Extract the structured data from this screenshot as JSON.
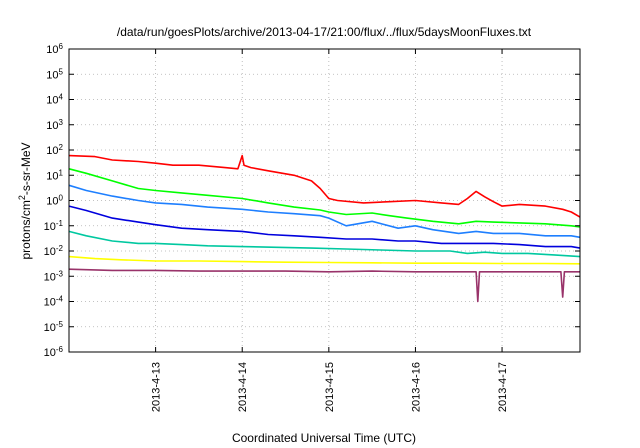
{
  "chart_data": {
    "type": "line",
    "title": "/data/run/goesPlots/archive/2013-04-17/21:00/flux/../flux/5daysMoonFluxes.txt",
    "xlabel": "Coordinated Universal Time (UTC)",
    "ylabel_prefix": "protons/cm",
    "ylabel_sup": "2",
    "ylabel_suffix": "-s-sr-MeV",
    "yscale": "log",
    "ylim": [
      1e-06,
      1000000.0
    ],
    "xlim": [
      0.0,
      5.9
    ],
    "grid": true,
    "legend": "none",
    "x_ticks": [
      {
        "x": 1,
        "label": "2013-4-13"
      },
      {
        "x": 2,
        "label": "2013-4-14"
      },
      {
        "x": 3,
        "label": "2013-4-15"
      },
      {
        "x": 4,
        "label": "2013-4-16"
      },
      {
        "x": 5,
        "label": "2013-4-17"
      }
    ],
    "y_ticks": [
      {
        "exp": -6,
        "base": "10",
        "sup": "-6"
      },
      {
        "exp": -5,
        "base": "10",
        "sup": "-5"
      },
      {
        "exp": -4,
        "base": "10",
        "sup": "-4"
      },
      {
        "exp": -3,
        "base": "10",
        "sup": "-3"
      },
      {
        "exp": -2,
        "base": "10",
        "sup": "-2"
      },
      {
        "exp": -1,
        "base": "10",
        "sup": "-1"
      },
      {
        "exp": 0,
        "base": "10",
        "sup": "0"
      },
      {
        "exp": 1,
        "base": "10",
        "sup": "1"
      },
      {
        "exp": 2,
        "base": "10",
        "sup": "2"
      },
      {
        "exp": 3,
        "base": "10",
        "sup": "3"
      },
      {
        "exp": 4,
        "base": "10",
        "sup": "4"
      },
      {
        "exp": 5,
        "base": "10",
        "sup": "5"
      },
      {
        "exp": 6,
        "base": "10",
        "sup": "6"
      }
    ],
    "series": [
      {
        "color": "#ff0000",
        "x": [
          0,
          0.3,
          0.5,
          0.8,
          1,
          1.2,
          1.5,
          1.8,
          1.95,
          2.0,
          2.02,
          2.1,
          2.3,
          2.6,
          2.8,
          2.9,
          3.0,
          3.1,
          3.4,
          3.7,
          4.0,
          4.3,
          4.5,
          4.6,
          4.7,
          4.8,
          4.9,
          5.0,
          5.2,
          5.5,
          5.7,
          5.8,
          5.9
        ],
        "y": [
          60,
          55,
          40,
          35,
          30,
          25,
          25,
          20,
          18,
          60,
          25,
          20,
          15,
          10,
          6,
          3,
          1.2,
          1.0,
          0.8,
          0.9,
          1.0,
          0.8,
          0.7,
          1.2,
          2.3,
          1.4,
          0.9,
          0.6,
          0.7,
          0.6,
          0.45,
          0.35,
          0.22
        ]
      },
      {
        "color": "#00ff00",
        "x": [
          0,
          0.2,
          0.5,
          0.8,
          1,
          1.3,
          1.6,
          2,
          2.3,
          2.6,
          2.9,
          3.0,
          3.2,
          3.5,
          3.7,
          3.9,
          4.2,
          4.5,
          4.7,
          4.9,
          5.2,
          5.5,
          5.8,
          5.9
        ],
        "y": [
          18,
          12,
          6,
          3,
          2.5,
          2.0,
          1.6,
          1.2,
          0.8,
          0.55,
          0.42,
          0.35,
          0.28,
          0.32,
          0.25,
          0.2,
          0.15,
          0.12,
          0.15,
          0.14,
          0.13,
          0.12,
          0.1,
          0.09
        ]
      },
      {
        "color": "#1e7fff",
        "x": [
          0,
          0.2,
          0.5,
          0.8,
          1,
          1.3,
          1.6,
          2,
          2.3,
          2.6,
          2.9,
          3.0,
          3.2,
          3.5,
          3.8,
          4.0,
          4.2,
          4.5,
          4.7,
          4.9,
          5.2,
          5.5,
          5.8,
          5.9
        ],
        "y": [
          4,
          2.5,
          1.5,
          1.0,
          0.8,
          0.7,
          0.55,
          0.45,
          0.35,
          0.3,
          0.25,
          0.2,
          0.1,
          0.15,
          0.08,
          0.1,
          0.07,
          0.05,
          0.06,
          0.05,
          0.05,
          0.04,
          0.04,
          0.035
        ]
      },
      {
        "color": "#0000dd",
        "x": [
          0,
          0.2,
          0.5,
          0.8,
          1,
          1.3,
          1.6,
          2,
          2.3,
          2.6,
          2.9,
          3.2,
          3.5,
          3.8,
          4.0,
          4.3,
          4.6,
          4.9,
          5.2,
          5.5,
          5.8,
          5.9
        ],
        "y": [
          0.6,
          0.4,
          0.2,
          0.14,
          0.11,
          0.08,
          0.07,
          0.06,
          0.045,
          0.04,
          0.035,
          0.03,
          0.03,
          0.025,
          0.025,
          0.02,
          0.02,
          0.02,
          0.018,
          0.015,
          0.015,
          0.013
        ]
      },
      {
        "color": "#00c8a0",
        "x": [
          0,
          0.2,
          0.5,
          0.8,
          1,
          1.3,
          1.6,
          2,
          2.4,
          2.8,
          3.2,
          3.6,
          4.0,
          4.4,
          4.6,
          4.8,
          5.0,
          5.3,
          5.6,
          5.9
        ],
        "y": [
          0.06,
          0.04,
          0.025,
          0.02,
          0.02,
          0.018,
          0.016,
          0.015,
          0.014,
          0.013,
          0.012,
          0.011,
          0.01,
          0.01,
          0.008,
          0.009,
          0.008,
          0.008,
          0.007,
          0.006
        ]
      },
      {
        "color": "#ffff00",
        "x": [
          0,
          0.3,
          0.6,
          1,
          1.5,
          2,
          2.5,
          3,
          3.5,
          4,
          4.5,
          5,
          5.5,
          5.9
        ],
        "y": [
          0.006,
          0.005,
          0.0045,
          0.004,
          0.004,
          0.0038,
          0.0036,
          0.0035,
          0.0034,
          0.0033,
          0.0033,
          0.0032,
          0.0032,
          0.0031
        ]
      },
      {
        "color": "#99336a",
        "x": [
          0,
          0.5,
          1,
          1.5,
          2,
          2.5,
          3,
          3.5,
          4,
          4.5,
          4.7,
          4.72,
          4.74,
          5.0,
          5.5,
          5.68,
          5.7,
          5.72,
          5.9
        ],
        "y": [
          0.0019,
          0.0017,
          0.0017,
          0.0016,
          0.0016,
          0.0016,
          0.0015,
          0.0016,
          0.0015,
          0.0015,
          0.0015,
          0.0001,
          0.0015,
          0.0015,
          0.0015,
          0.0015,
          0.00015,
          0.0015,
          0.0015
        ]
      }
    ]
  }
}
